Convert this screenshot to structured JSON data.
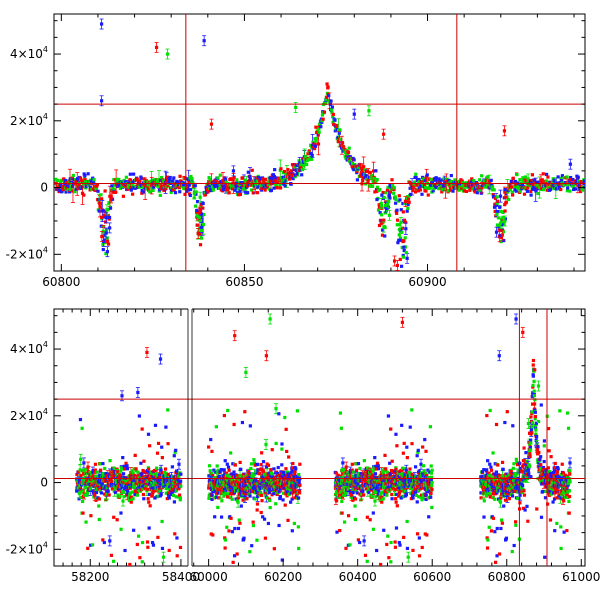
{
  "chart_data": [
    {
      "type": "scatter",
      "panel": "top",
      "xlim": [
        60798,
        60943
      ],
      "ylim": [
        -25000,
        52000
      ],
      "x_ticks": [
        {
          "value": 60800,
          "label": "60800"
        },
        {
          "value": 60850,
          "label": "60850"
        },
        {
          "value": 60900,
          "label": "60900"
        }
      ],
      "y_ticks": [
        {
          "value": -20000,
          "mant": "-2×10",
          "exp": "4"
        },
        {
          "value": 0,
          "mant": "0",
          "exp": ""
        },
        {
          "value": 20000,
          "mant": "2×10",
          "exp": "4"
        },
        {
          "value": 40000,
          "mant": "4×10",
          "exp": "4"
        }
      ],
      "ref_lines": {
        "horizontal": [
          25000,
          1200
        ],
        "vertical": [
          60834,
          60908
        ]
      },
      "colors": {
        "blue": "#1a1aff",
        "green": "#00e000",
        "red": "#ff0000",
        "ref": "#cc0000"
      },
      "event": {
        "t0": 60872.5,
        "peak": 30000,
        "tau": 4.5,
        "base": 800
      },
      "gaps": [],
      "dips": [
        {
          "x": 60812,
          "depth": -18000,
          "width": 1.5
        },
        {
          "x": 60838,
          "depth": -15000,
          "width": 1.2
        },
        {
          "x": 60888,
          "depth": -12000,
          "width": 1.5
        },
        {
          "x": 60893,
          "depth": -22000,
          "width": 1.5
        },
        {
          "x": 60920,
          "depth": -14000,
          "width": 1.5
        }
      ],
      "outliers": [
        {
          "x": 60811,
          "y": 49000,
          "s": "blue"
        },
        {
          "x": 60811,
          "y": 26000,
          "s": "blue"
        },
        {
          "x": 60826,
          "y": 42000,
          "s": "red"
        },
        {
          "x": 60829,
          "y": 40000,
          "s": "green"
        },
        {
          "x": 60839,
          "y": 44000,
          "s": "blue"
        },
        {
          "x": 60841,
          "y": 19000,
          "s": "red"
        },
        {
          "x": 60847,
          "y": 5000,
          "s": "blue"
        },
        {
          "x": 60864,
          "y": 24000,
          "s": "green"
        },
        {
          "x": 60880,
          "y": 22000,
          "s": "blue"
        },
        {
          "x": 60884,
          "y": 23000,
          "s": "green"
        },
        {
          "x": 60888,
          "y": 16000,
          "s": "red"
        },
        {
          "x": 60891,
          "y": -22000,
          "s": "red"
        },
        {
          "x": 60921,
          "y": 17000,
          "s": "red"
        },
        {
          "x": 60939,
          "y": 7000,
          "s": "blue"
        }
      ]
    },
    {
      "type": "scatter",
      "panel": "bottom",
      "xlim": [
        58120,
        61010
      ],
      "ylim": [
        -25000,
        52000
      ],
      "x_ticks": [
        {
          "value": 58200,
          "label": "58200"
        },
        {
          "value": 58400,
          "label": "58400"
        },
        {
          "value": 60000,
          "label": "60000"
        },
        {
          "value": 60200,
          "label": "60200"
        },
        {
          "value": 60400,
          "label": "60400"
        },
        {
          "value": 60600,
          "label": "60600"
        },
        {
          "value": 60800,
          "label": "60800"
        },
        {
          "value": 61000,
          "label": "61000"
        }
      ],
      "break": {
        "left_end": 58420,
        "right_start": 59950
      },
      "y_ticks": [
        {
          "value": -20000,
          "mant": "-2×10",
          "exp": "4"
        },
        {
          "value": 0,
          "mant": "0",
          "exp": ""
        },
        {
          "value": 20000,
          "mant": "2×10",
          "exp": "4"
        },
        {
          "value": 40000,
          "mant": "4×10",
          "exp": "4"
        }
      ],
      "ref_lines": {
        "horizontal": [
          25000,
          1200
        ],
        "vertical": [
          60834,
          60908
        ]
      },
      "colors": {
        "blue": "#1a1aff",
        "green": "#00e000",
        "red": "#ff0000",
        "ref": "#cc0000"
      },
      "event": {
        "t0": 60872,
        "peak": 35000,
        "tau": 8,
        "base": 0
      },
      "seasons": [
        [
          58170,
          58400
        ],
        [
          60000,
          60245
        ],
        [
          60340,
          60600
        ],
        [
          60730,
          60970
        ]
      ],
      "outliers": [
        {
          "x": 58270,
          "y": 26000,
          "s": "blue"
        },
        {
          "x": 58305,
          "y": 27000,
          "s": "blue"
        },
        {
          "x": 58325,
          "y": 39000,
          "s": "red"
        },
        {
          "x": 58355,
          "y": 37000,
          "s": "blue"
        },
        {
          "x": 60070,
          "y": 44000,
          "s": "red"
        },
        {
          "x": 60100,
          "y": 33000,
          "s": "green"
        },
        {
          "x": 60155,
          "y": 38000,
          "s": "red"
        },
        {
          "x": 60165,
          "y": 49000,
          "s": "green"
        },
        {
          "x": 60520,
          "y": 48000,
          "s": "red"
        },
        {
          "x": 60780,
          "y": 38000,
          "s": "blue"
        },
        {
          "x": 60825,
          "y": 49000,
          "s": "blue"
        },
        {
          "x": 60843,
          "y": 45000,
          "s": "red"
        }
      ]
    }
  ]
}
